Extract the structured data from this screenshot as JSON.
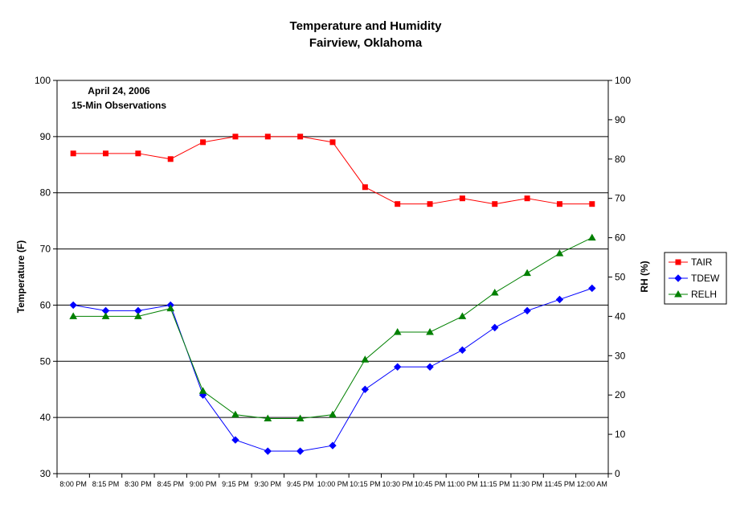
{
  "chart_data": {
    "type": "line",
    "title": "Temperature and Humidity",
    "subtitle": "Fairview, Oklahoma",
    "annotation": [
      "April 24, 2006",
      "15-Min Observations"
    ],
    "ylabel": "Temperature (F)",
    "y2label": "RH (%)",
    "ylim": [
      30,
      100
    ],
    "y2lim": [
      0,
      100
    ],
    "yticks": [
      30,
      40,
      50,
      60,
      70,
      80,
      90,
      100
    ],
    "y2ticks": [
      0,
      10,
      20,
      30,
      40,
      50,
      60,
      70,
      80,
      90,
      100
    ],
    "grid": true,
    "legend_position": "right",
    "categories": [
      "8:00 PM",
      "8:15 PM",
      "8:30 PM",
      "8:45 PM",
      "9:00 PM",
      "9:15 PM",
      "9:30 PM",
      "9:45 PM",
      "10:00 PM",
      "10:15 PM",
      "10:30 PM",
      "10:45 PM",
      "11:00 PM",
      "11:15 PM",
      "11:30 PM",
      "11:45 PM",
      "12:00 AM"
    ],
    "series": [
      {
        "name": "TAIR",
        "axis": "left",
        "color": "#ff0000",
        "marker": "square",
        "values": [
          87,
          87,
          87,
          86,
          89,
          90,
          90,
          90,
          89,
          81,
          78,
          78,
          79,
          78,
          79,
          78,
          78
        ]
      },
      {
        "name": "TDEW",
        "axis": "left",
        "color": "#0000ff",
        "marker": "diamond",
        "values": [
          60,
          59,
          59,
          60,
          44,
          36,
          34,
          34,
          35,
          45,
          49,
          49,
          52,
          56,
          59,
          61,
          63
        ]
      },
      {
        "name": "RELH",
        "axis": "right",
        "color": "#008000",
        "marker": "triangle",
        "values": [
          40,
          40,
          40,
          42,
          21,
          15,
          14,
          14,
          15,
          29,
          36,
          36,
          40,
          46,
          51,
          56,
          60
        ]
      }
    ]
  }
}
